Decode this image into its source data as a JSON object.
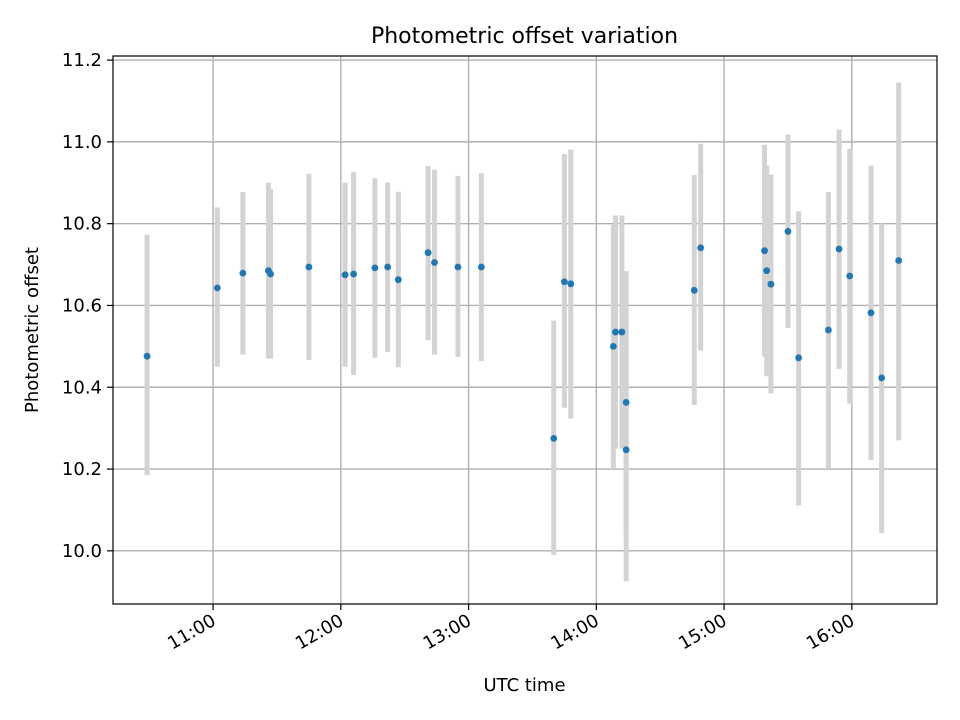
{
  "chart_data": {
    "type": "scatter",
    "title": "Photometric offset variation",
    "xlabel": "UTC time",
    "ylabel": "Photometric offset",
    "xlim": [
      "10:13",
      "16:40"
    ],
    "ylim": [
      9.87,
      11.21
    ],
    "grid": true,
    "x_ticks": [
      "11:00",
      "12:00",
      "13:00",
      "14:00",
      "15:00",
      "16:00"
    ],
    "y_ticks": [
      "10.0",
      "10.2",
      "10.4",
      "10.6",
      "10.8",
      "11.0",
      "11.2"
    ],
    "errorbar_color": "#d3d3d3",
    "marker_color": "#1f77b4",
    "points": [
      {
        "x": "10:29",
        "y": 10.476,
        "ylow": 10.185,
        "yhigh": 10.773
      },
      {
        "x": "11:02",
        "y": 10.643,
        "ylow": 10.45,
        "yhigh": 10.84
      },
      {
        "x": "11:14",
        "y": 10.679,
        "ylow": 10.48,
        "yhigh": 10.877
      },
      {
        "x": "11:26",
        "y": 10.685,
        "ylow": 10.47,
        "yhigh": 10.9
      },
      {
        "x": "11:27",
        "y": 10.677,
        "ylow": 10.47,
        "yhigh": 10.885
      },
      {
        "x": "11:45",
        "y": 10.694,
        "ylow": 10.467,
        "yhigh": 10.922
      },
      {
        "x": "12:02",
        "y": 10.675,
        "ylow": 10.45,
        "yhigh": 10.9
      },
      {
        "x": "12:06",
        "y": 10.677,
        "ylow": 10.43,
        "yhigh": 10.926
      },
      {
        "x": "12:16",
        "y": 10.692,
        "ylow": 10.472,
        "yhigh": 10.911
      },
      {
        "x": "12:22",
        "y": 10.694,
        "ylow": 10.486,
        "yhigh": 10.901
      },
      {
        "x": "12:27",
        "y": 10.663,
        "ylow": 10.449,
        "yhigh": 10.878
      },
      {
        "x": "12:41",
        "y": 10.729,
        "ylow": 10.515,
        "yhigh": 10.941
      },
      {
        "x": "12:44",
        "y": 10.705,
        "ylow": 10.48,
        "yhigh": 10.932
      },
      {
        "x": "12:55",
        "y": 10.694,
        "ylow": 10.474,
        "yhigh": 10.917
      },
      {
        "x": "13:06",
        "y": 10.694,
        "ylow": 10.464,
        "yhigh": 10.923
      },
      {
        "x": "13:40",
        "y": 10.275,
        "ylow": 9.99,
        "yhigh": 10.563
      },
      {
        "x": "13:45",
        "y": 10.658,
        "ylow": 10.35,
        "yhigh": 10.97
      },
      {
        "x": "13:48",
        "y": 10.653,
        "ylow": 10.323,
        "yhigh": 10.981
      },
      {
        "x": "14:08",
        "y": 10.5,
        "ylow": 10.2,
        "yhigh": 10.797
      },
      {
        "x": "14:09",
        "y": 10.535,
        "ylow": 10.25,
        "yhigh": 10.82
      },
      {
        "x": "14:12",
        "y": 10.535,
        "ylow": 10.25,
        "yhigh": 10.82
      },
      {
        "x": "14:14",
        "y": 10.363,
        "ylow": 10.04,
        "yhigh": 10.684
      },
      {
        "x": "14:14",
        "y": 10.247,
        "ylow": 9.925,
        "yhigh": 10.57
      },
      {
        "x": "14:46",
        "y": 10.637,
        "ylow": 10.357,
        "yhigh": 10.919
      },
      {
        "x": "14:49",
        "y": 10.741,
        "ylow": 10.49,
        "yhigh": 10.995
      },
      {
        "x": "15:19",
        "y": 10.734,
        "ylow": 10.475,
        "yhigh": 10.993
      },
      {
        "x": "15:20",
        "y": 10.685,
        "ylow": 10.427,
        "yhigh": 10.942
      },
      {
        "x": "15:22",
        "y": 10.652,
        "ylow": 10.385,
        "yhigh": 10.92
      },
      {
        "x": "15:30",
        "y": 10.781,
        "ylow": 10.545,
        "yhigh": 11.018
      },
      {
        "x": "15:35",
        "y": 10.472,
        "ylow": 10.111,
        "yhigh": 10.83
      },
      {
        "x": "15:49",
        "y": 10.54,
        "ylow": 10.2,
        "yhigh": 10.877
      },
      {
        "x": "15:54",
        "y": 10.738,
        "ylow": 10.445,
        "yhigh": 11.03
      },
      {
        "x": "15:59",
        "y": 10.672,
        "ylow": 10.36,
        "yhigh": 10.983
      },
      {
        "x": "16:09",
        "y": 10.582,
        "ylow": 10.222,
        "yhigh": 10.942
      },
      {
        "x": "16:14",
        "y": 10.423,
        "ylow": 10.043,
        "yhigh": 10.8
      },
      {
        "x": "16:22",
        "y": 10.71,
        "ylow": 10.27,
        "yhigh": 11.145
      }
    ]
  }
}
